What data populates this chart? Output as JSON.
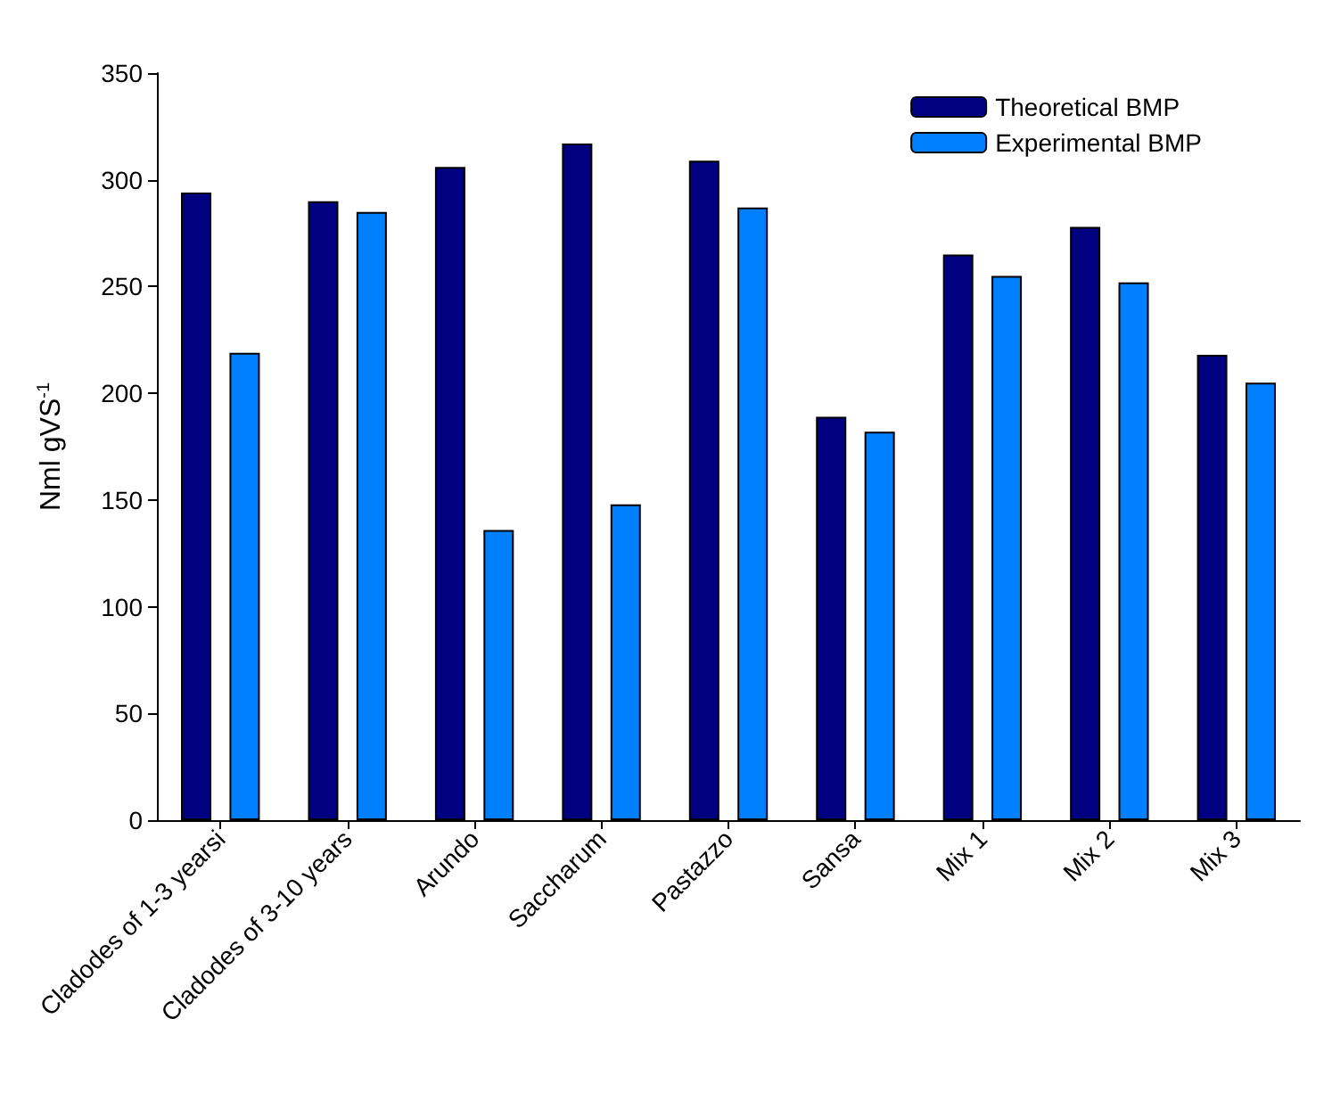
{
  "chart_data": {
    "type": "bar",
    "ylabel": "Nml gVS$^{-1}$",
    "categories": [
      "Cladodes of 1-3 yearsi",
      "Cladodes of 3-10 years",
      "Arundo",
      "Saccharum",
      "Pastazzo",
      "Sansa",
      "Mix 1",
      "Mix 2",
      "Mix 3"
    ],
    "series": [
      {
        "name": "Theoretical BMP",
        "color": "#000080",
        "values": [
          294,
          290,
          306,
          317,
          309,
          189,
          265,
          278,
          218
        ]
      },
      {
        "name": "Experimental BMP",
        "color": "#0080ff",
        "values": [
          219,
          285,
          136,
          148,
          287,
          182,
          255,
          252,
          205
        ]
      }
    ],
    "ylim": [
      0,
      350
    ],
    "yticks": [
      0,
      50,
      100,
      150,
      200,
      250,
      300,
      350
    ],
    "grid": false,
    "legend": "top right"
  }
}
